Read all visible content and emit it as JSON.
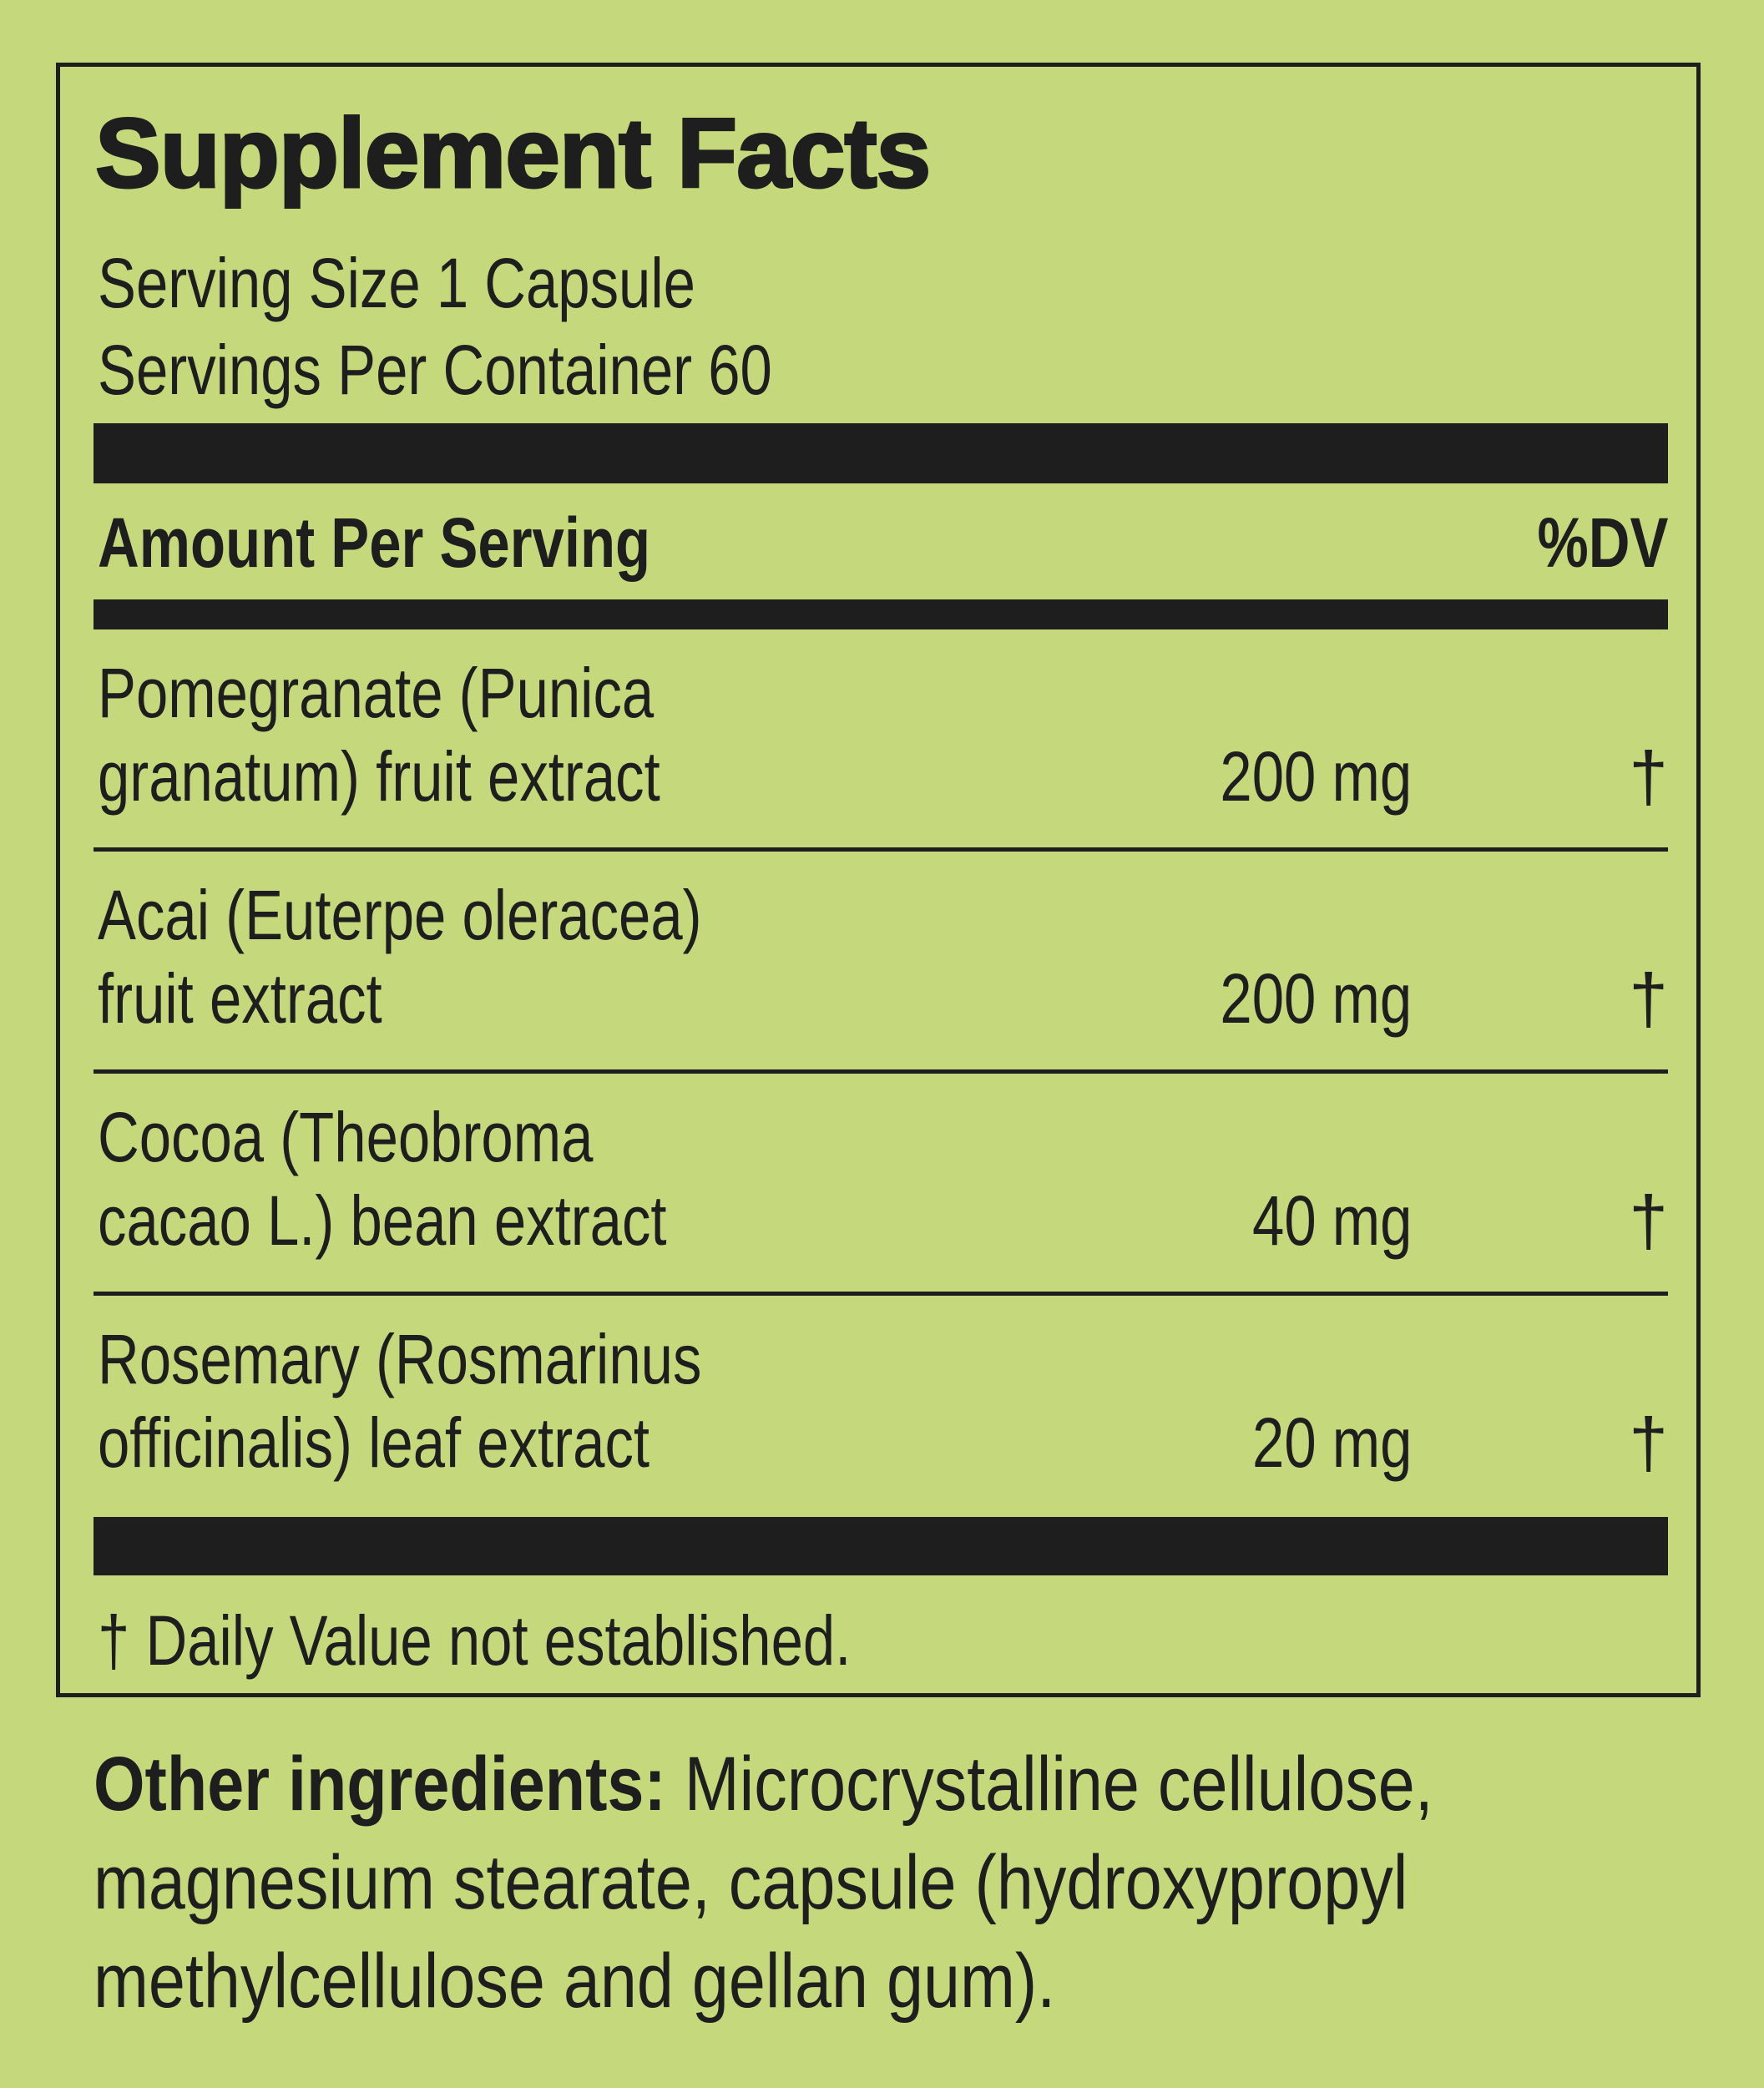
{
  "title": "Supplement Facts",
  "serving_size": "Serving Size 1 Capsule",
  "servings_per_container": "Servings Per Container 60",
  "header": {
    "amount": "Amount Per Serving",
    "dv": "%DV"
  },
  "ingredients": [
    {
      "line1": "Pomegranate (Punica",
      "line2": "granatum) fruit extract",
      "amount": "200 mg",
      "dv": "†"
    },
    {
      "line1": "Acai (Euterpe oleracea)",
      "line2": "fruit extract",
      "amount": "200 mg",
      "dv": "†"
    },
    {
      "line1": "Cocoa (Theobroma",
      "line2": "cacao L.) bean extract",
      "amount": "40 mg",
      "dv": "†"
    },
    {
      "line1": "Rosemary (Rosmarinus",
      "line2": "officinalis) leaf extract",
      "amount": "20 mg",
      "dv": "†"
    }
  ],
  "footnote": "† Daily Value not established.",
  "other_ingredients": {
    "label": "Other ingredients:",
    "line1": " Microcrystalline cellulose,",
    "line2": "magnesium stearate, capsule (hydroxypropyl",
    "line3": "methylcellulose and gellan gum)."
  },
  "colors": {
    "background": "#c5d97c",
    "ink": "#1e1e1e"
  }
}
